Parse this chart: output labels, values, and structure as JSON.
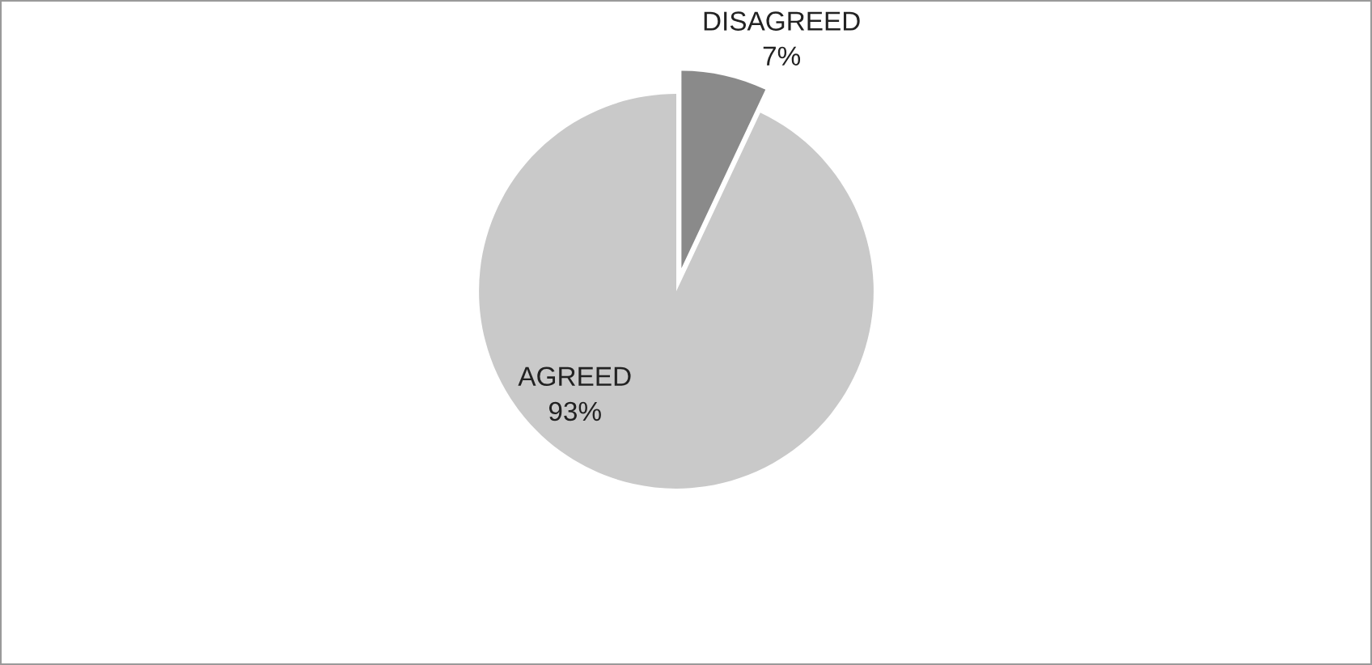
{
  "chart_data": {
    "type": "pie",
    "categories": [
      "DISAGREED",
      "AGREED"
    ],
    "values": [
      7,
      93
    ],
    "colors": [
      "#8a8a8a",
      "#c9c9c9"
    ],
    "value_labels": [
      "7%",
      "93%"
    ]
  }
}
